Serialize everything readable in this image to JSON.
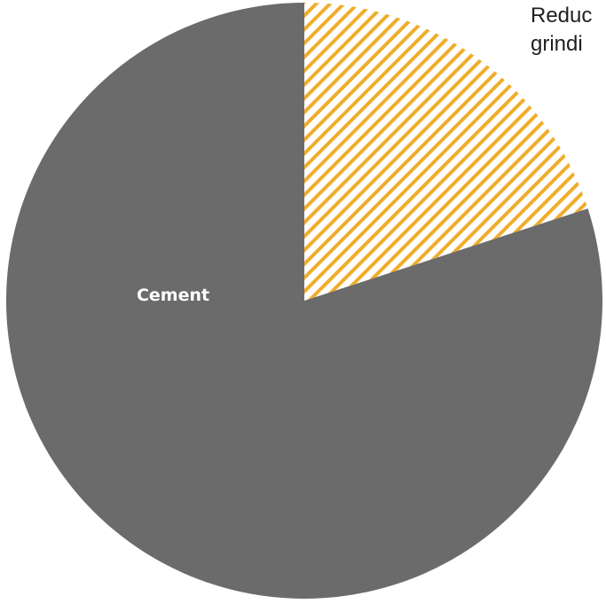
{
  "chart_data": {
    "type": "pie",
    "slices": [
      {
        "label": "",
        "value": 20,
        "color": "#f0ad2b",
        "pattern": "diagonal-hatch"
      },
      {
        "label": "Cement",
        "value": 80,
        "color": "#6b6b6b",
        "pattern": "solid"
      }
    ],
    "title": "",
    "annotation": "Reduc\ngrindi"
  }
}
